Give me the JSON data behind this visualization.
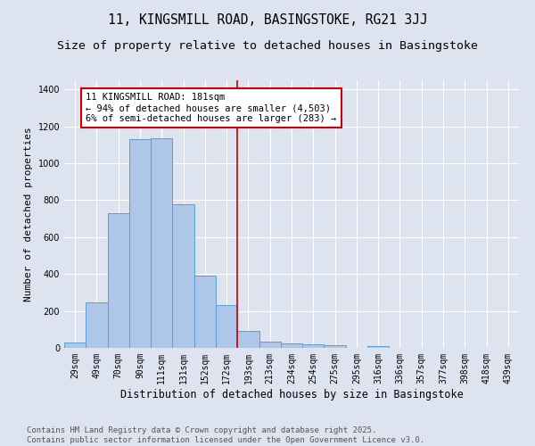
{
  "title": "11, KINGSMILL ROAD, BASINGSTOKE, RG21 3JJ",
  "subtitle": "Size of property relative to detached houses in Basingstoke",
  "xlabel": "Distribution of detached houses by size in Basingstoke",
  "ylabel": "Number of detached properties",
  "categories": [
    "29sqm",
    "49sqm",
    "70sqm",
    "90sqm",
    "111sqm",
    "131sqm",
    "152sqm",
    "172sqm",
    "193sqm",
    "213sqm",
    "234sqm",
    "254sqm",
    "275sqm",
    "295sqm",
    "316sqm",
    "336sqm",
    "357sqm",
    "377sqm",
    "398sqm",
    "418sqm",
    "439sqm"
  ],
  "values": [
    30,
    245,
    730,
    1130,
    1135,
    780,
    390,
    230,
    90,
    35,
    25,
    20,
    15,
    0,
    8,
    0,
    0,
    0,
    0,
    0,
    0
  ],
  "bar_color": "#aec6e8",
  "bar_edge_color": "#5a9fd4",
  "vline_x_index": 7.5,
  "vline_color": "#cc0000",
  "annotation_line1": "11 KINGSMILL ROAD: 181sqm",
  "annotation_line2": "← 94% of detached houses are smaller (4,503)",
  "annotation_line3": "6% of semi-detached houses are larger (283) →",
  "annotation_box_color": "#cc0000",
  "background_color": "#dde4f0",
  "ylim": [
    0,
    1450
  ],
  "yticks": [
    0,
    200,
    400,
    600,
    800,
    1000,
    1200,
    1400
  ],
  "footer_line1": "Contains HM Land Registry data © Crown copyright and database right 2025.",
  "footer_line2": "Contains public sector information licensed under the Open Government Licence v3.0.",
  "title_fontsize": 10.5,
  "subtitle_fontsize": 9.5,
  "xlabel_fontsize": 8.5,
  "ylabel_fontsize": 8,
  "tick_fontsize": 7,
  "annotation_fontsize": 7.5,
  "footer_fontsize": 6.5
}
